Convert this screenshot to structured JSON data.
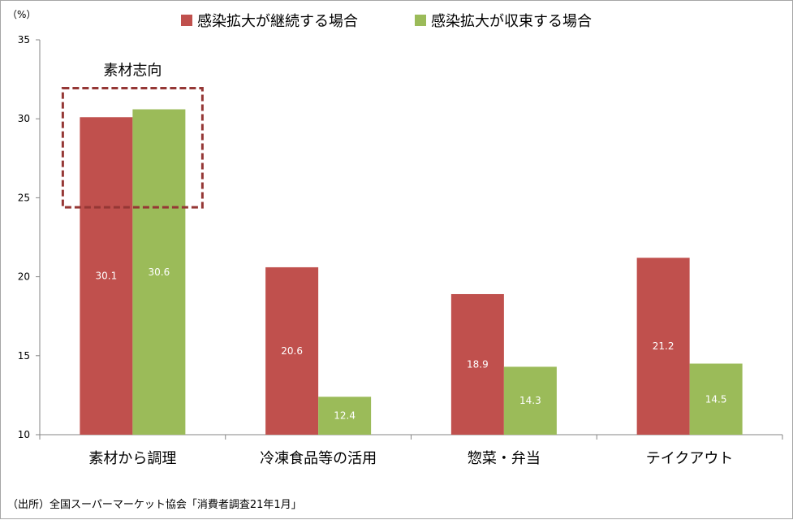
{
  "chart_data": {
    "type": "bar",
    "unit_label": "（%）",
    "categories": [
      "素材から調理",
      "冷凍食品等の活用",
      "惣菜・弁当",
      "テイクアウト"
    ],
    "series": [
      {
        "name": "感染拡大が継続する場合",
        "values": [
          30.1,
          20.6,
          18.9,
          21.2
        ],
        "labels": [
          "30.1",
          "20.6",
          "18.9",
          "21.2"
        ],
        "color": "#c0504d"
      },
      {
        "name": "感染拡大が収束する場合",
        "values": [
          30.6,
          12.4,
          14.3,
          14.5
        ],
        "labels": [
          "30.6",
          "12.4",
          "14.3",
          "14.5"
        ],
        "color": "#9bbb59"
      }
    ],
    "ylim": [
      10,
      35
    ],
    "yticks": [
      10,
      15,
      20,
      25,
      30,
      35
    ],
    "ytick_labels": [
      "10",
      "15",
      "20",
      "25",
      "30",
      "35"
    ],
    "legend_position": "top",
    "grid": false,
    "annotation": {
      "text": "素材志向",
      "category_index": 0,
      "box_style": "dashed",
      "box_color": "#953735"
    },
    "source": "（出所）全国スーパーマーケット協会「消費者調査21年1月」"
  }
}
